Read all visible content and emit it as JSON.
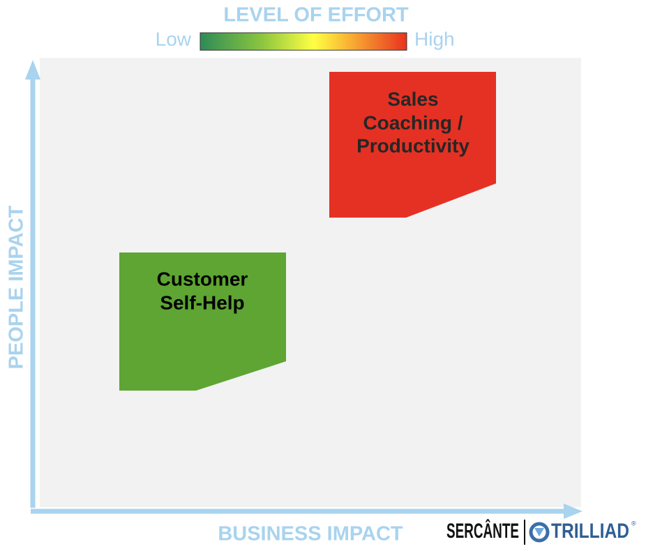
{
  "legend": {
    "title": "LEVEL OF EFFORT",
    "low": "Low",
    "high": "High"
  },
  "axes": {
    "y_label": "PEOPLE IMPACT",
    "x_label": "BUSINESS IMPACT"
  },
  "items": [
    {
      "lines": [
        "Sales",
        "Coaching /",
        "Productivity"
      ]
    },
    {
      "lines": [
        "Customer",
        "Self-Help"
      ]
    }
  ],
  "logo": {
    "left": "SERCÂNTE",
    "right": "TRILLIAD",
    "mark": "®"
  }
}
